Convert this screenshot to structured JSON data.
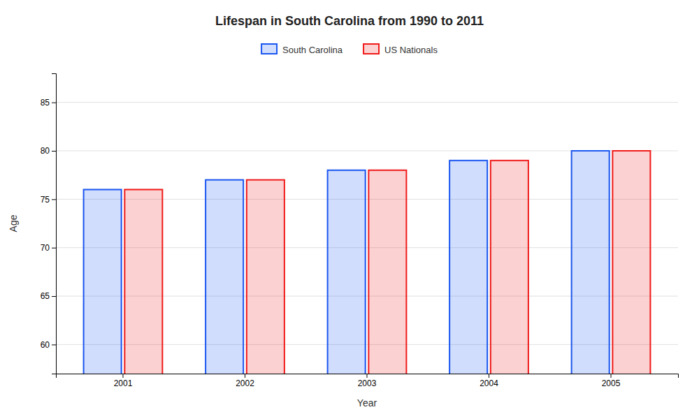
{
  "chart_data": {
    "type": "bar",
    "title": "Lifespan in South Carolina from 1990 to 2011",
    "xlabel": "Year",
    "ylabel": "Age",
    "categories": [
      "2001",
      "2002",
      "2003",
      "2004",
      "2005"
    ],
    "series": [
      {
        "name": "South Carolina",
        "color": "#1a56f0",
        "values": [
          76,
          77,
          78,
          79,
          80
        ]
      },
      {
        "name": "US Nationals",
        "color": "#f01a1a",
        "values": [
          76,
          77,
          78,
          79,
          80
        ]
      }
    ],
    "ylim": [
      57,
      88
    ],
    "yticks": [
      60,
      65,
      70,
      75,
      80,
      85
    ],
    "grid": true,
    "legend": "top"
  }
}
